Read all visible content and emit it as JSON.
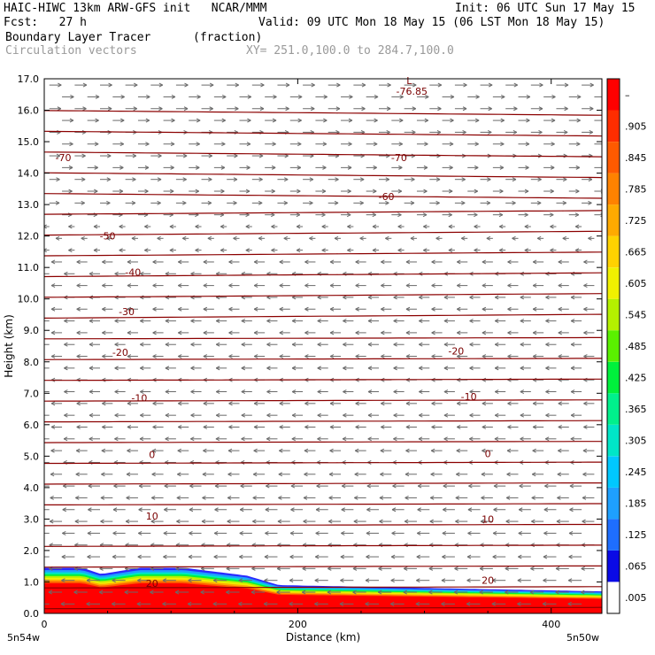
{
  "header": {
    "line1_left": "HAIC-HIWC 13km ARW-GFS init   NCAR/MMM",
    "line1_right": "Init: 06 UTC Sun 17 May 15",
    "line2_left": "Fcst:   27 h",
    "line2_right": "Valid: 09 UTC Mon 18 May 15 (06 LST Mon 18 May 15)",
    "line3_field": "Boundary Layer Tracer",
    "line3_units": "(fraction)",
    "line4_vectors": "Circulation vectors",
    "line4_xy": "XY= 251.0,100.0 to 284.7,100.0"
  },
  "axes": {
    "ylabel": "Height (km)",
    "xlabel": "Distance (km)",
    "x_end_left": "5n54w",
    "x_end_right": "5n50w"
  },
  "colorbar": {
    "labels": [
      ".005",
      ".065",
      ".125",
      ".185",
      ".245",
      ".305",
      ".365",
      ".425",
      ".485",
      ".545",
      ".605",
      ".665",
      ".725",
      ".785",
      ".845",
      ".905",
      "–"
    ],
    "colors": [
      "#ffffff",
      "#0a0ae6",
      "#1e6eff",
      "#1ea0ff",
      "#00c8ff",
      "#00e6c8",
      "#00f08c",
      "#00f03c",
      "#5af000",
      "#b4f000",
      "#f0f000",
      "#ffd200",
      "#ffaa00",
      "#ff8200",
      "#ff5a00",
      "#ff2d00",
      "#ff0000"
    ]
  },
  "chart_data": {
    "type": "cross-section",
    "title": "Boundary Layer Tracer",
    "xlabel": "Distance (km)",
    "ylabel": "Height (km)",
    "xlim": [
      0,
      440
    ],
    "ylim": [
      0,
      17
    ],
    "x_ticks": [
      0,
      200,
      400
    ],
    "y_ticks": [
      "0.0",
      "1.0",
      "2.0",
      "3.0",
      "4.0",
      "5.0",
      "6.0",
      "7.0",
      "8.0",
      "9.0",
      "10.0",
      "11.0",
      "12.0",
      "13.0",
      "14.0",
      "15.0",
      "16.0",
      "17.0"
    ],
    "contour_labels": [
      {
        "text": "-76.85",
        "x": 290,
        "y": 16.6
      },
      {
        "text": "L",
        "x": 288,
        "y": 16.95
      },
      {
        "text": "-70",
        "x": 15,
        "y": 14.5
      },
      {
        "text": "-70",
        "x": 280,
        "y": 14.5
      },
      {
        "text": "-60",
        "x": 270,
        "y": 13.25
      },
      {
        "text": "-50",
        "x": 50,
        "y": 12.0
      },
      {
        "text": "-40",
        "x": 70,
        "y": 10.85
      },
      {
        "text": "-30",
        "x": 65,
        "y": 9.6
      },
      {
        "text": "-20",
        "x": 60,
        "y": 8.3
      },
      {
        "text": "-20",
        "x": 325,
        "y": 8.35
      },
      {
        "text": "-10",
        "x": 75,
        "y": 6.85
      },
      {
        "text": "-10",
        "x": 335,
        "y": 6.9
      },
      {
        "text": "0",
        "x": 85,
        "y": 5.05
      },
      {
        "text": "0",
        "x": 350,
        "y": 5.08
      },
      {
        "text": "10",
        "x": 85,
        "y": 3.1
      },
      {
        "text": "10",
        "x": 350,
        "y": 3.0
      },
      {
        "text": "20",
        "x": 85,
        "y": 0.95
      },
      {
        "text": "20",
        "x": 350,
        "y": 1.05
      }
    ]
  }
}
